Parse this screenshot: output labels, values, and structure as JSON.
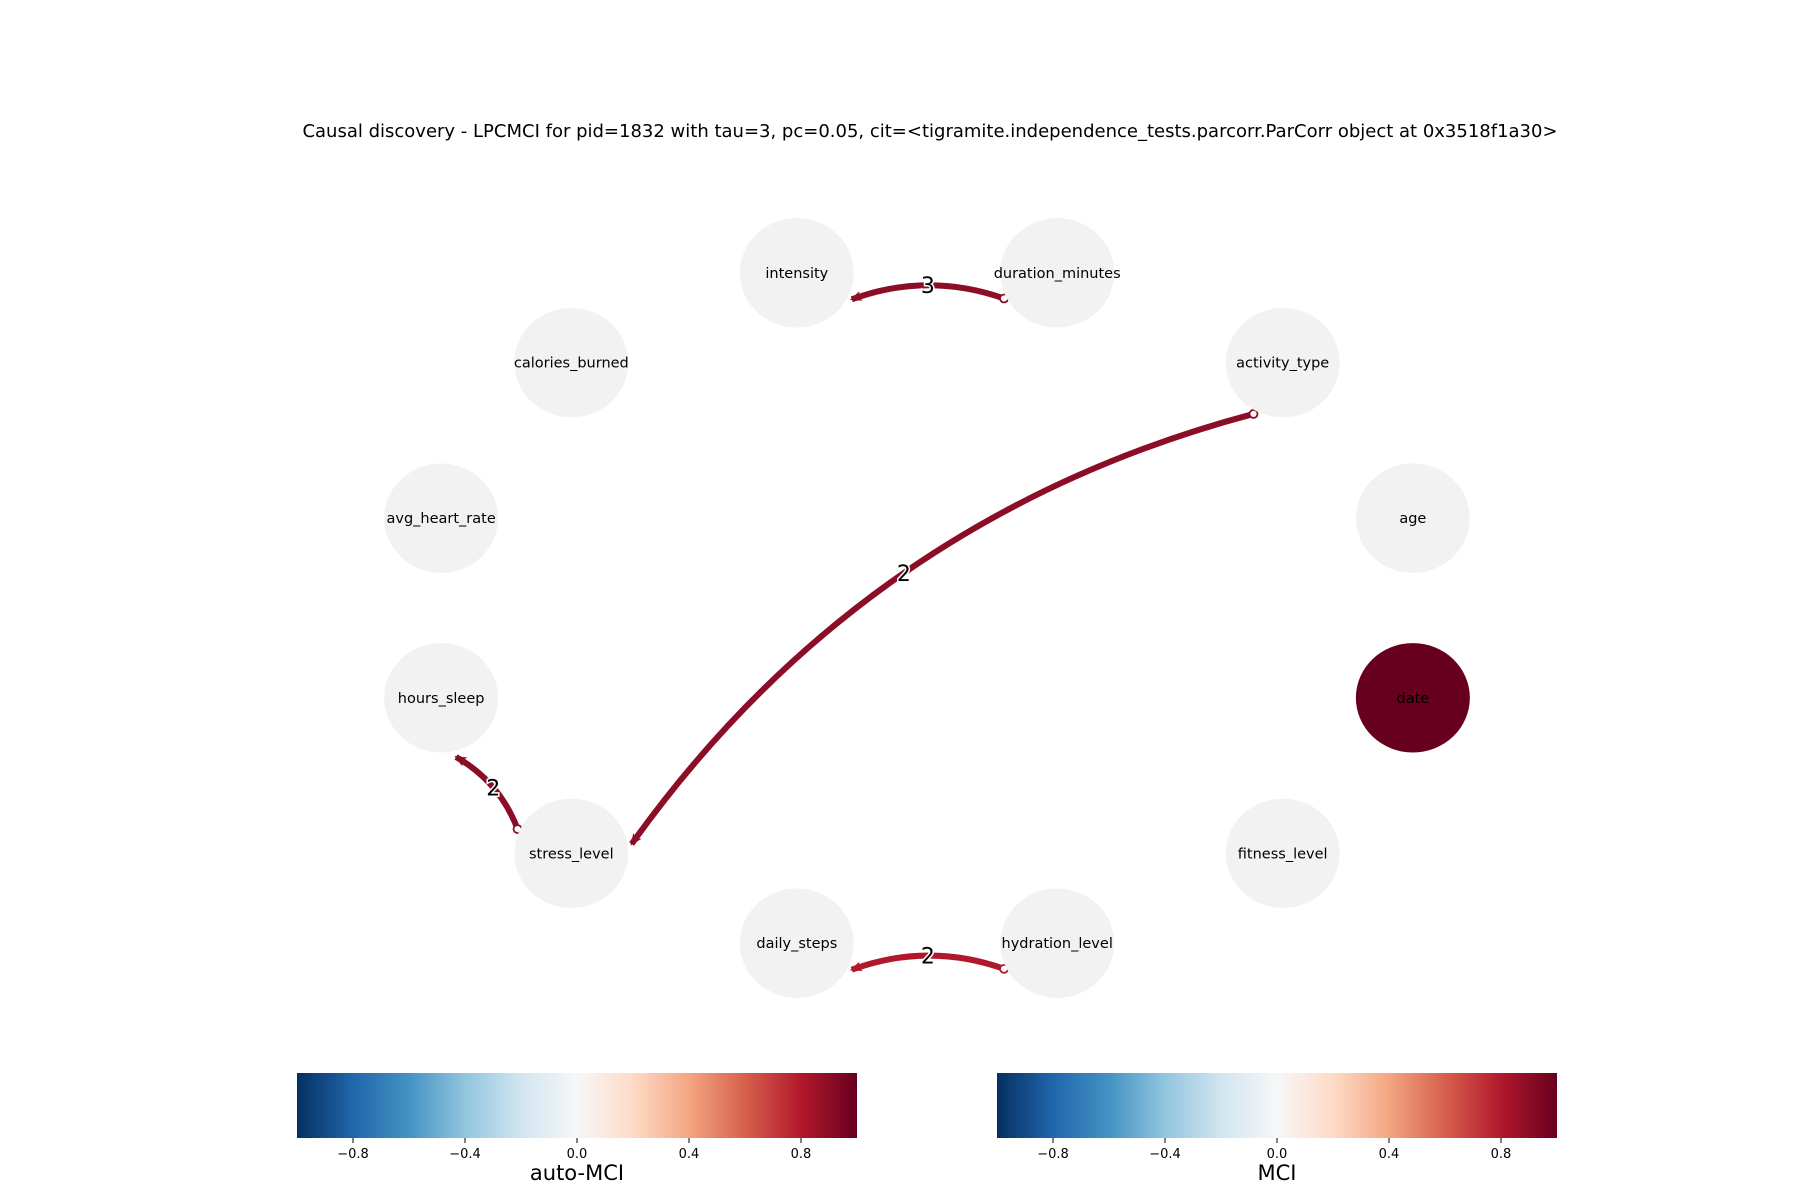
{
  "title": "Causal discovery - LPCMCI for pid=1832 with tau=3, pc=0.05, cit=<tigramite.independence_tests.parcorr.ParCorr object at 0x3518f1a30>",
  "colors": {
    "node_default": "#f2f2f2",
    "node_date": "#67001f",
    "edge_dark": "#8b0d26",
    "edge_light": "#b2182b"
  },
  "nodes": [
    {
      "id": "duration_minutes",
      "label": "duration_minutes",
      "auto_mci": null
    },
    {
      "id": "activity_type",
      "label": "activity_type",
      "auto_mci": null
    },
    {
      "id": "age",
      "label": "age",
      "auto_mci": null
    },
    {
      "id": "date",
      "label": "date",
      "auto_mci": 1.0
    },
    {
      "id": "fitness_level",
      "label": "fitness_level",
      "auto_mci": null
    },
    {
      "id": "hydration_level",
      "label": "hydration_level",
      "auto_mci": null
    },
    {
      "id": "daily_steps",
      "label": "daily_steps",
      "auto_mci": null
    },
    {
      "id": "stress_level",
      "label": "stress_level",
      "auto_mci": null
    },
    {
      "id": "hours_sleep",
      "label": "hours_sleep",
      "auto_mci": null
    },
    {
      "id": "avg_heart_rate",
      "label": "avg_heart_rate",
      "auto_mci": null
    },
    {
      "id": "calories_burned",
      "label": "calories_burned",
      "auto_mci": null
    },
    {
      "id": "intensity",
      "label": "intensity",
      "auto_mci": null
    }
  ],
  "edges": [
    {
      "from": "duration_minutes",
      "to": "intensity",
      "lag": "3",
      "color": "#8b0d26"
    },
    {
      "from": "activity_type",
      "to": "stress_level",
      "lag": "2",
      "color": "#8b0d26"
    },
    {
      "from": "stress_level",
      "to": "hours_sleep",
      "lag": "2",
      "color": "#8b0d26"
    },
    {
      "from": "hydration_level",
      "to": "daily_steps",
      "lag": "2",
      "color": "#b2182b"
    }
  ],
  "colorbars": [
    {
      "id": "auto-mci",
      "label": "auto-MCI",
      "ticks": [
        "−0.8",
        "−0.4",
        "0.0",
        "0.4",
        "0.8"
      ],
      "tick_values": [
        -0.8,
        -0.4,
        0.0,
        0.4,
        0.8
      ],
      "range": [
        -1,
        1
      ]
    },
    {
      "id": "mci",
      "label": "MCI",
      "ticks": [
        "−0.8",
        "−0.4",
        "0.0",
        "0.4",
        "0.8"
      ],
      "tick_values": [
        -0.8,
        -0.4,
        0.0,
        0.4,
        0.8
      ],
      "range": [
        -1,
        1
      ]
    }
  ],
  "colormap_stops": [
    "#053061",
    "#2166ac",
    "#4393c3",
    "#92c5de",
    "#d1e5f0",
    "#f7f7f7",
    "#fddbc7",
    "#f4a582",
    "#d6604d",
    "#b2182b",
    "#67001f"
  ]
}
